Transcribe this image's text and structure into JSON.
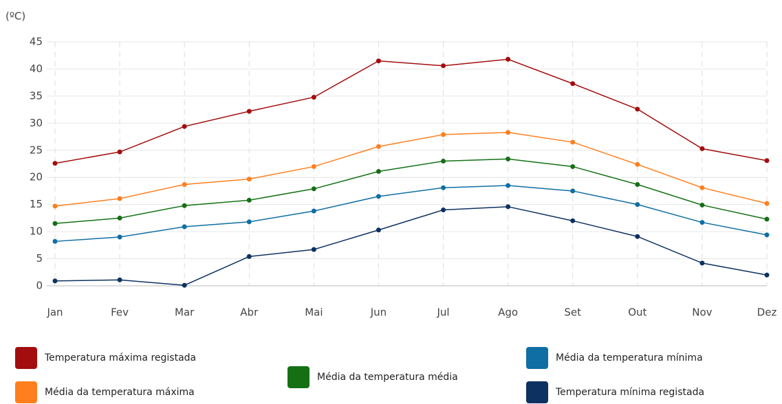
{
  "chart_data": {
    "type": "line",
    "y_label": "(ºC)",
    "categories": [
      "Jan",
      "Fev",
      "Mar",
      "Abr",
      "Mai",
      "Jun",
      "Jul",
      "Ago",
      "Set",
      "Out",
      "Nov",
      "Dez"
    ],
    "ylim": [
      0,
      45
    ],
    "yticks": [
      0,
      5,
      10,
      15,
      20,
      25,
      30,
      35,
      40,
      45
    ],
    "grid": true,
    "series": [
      {
        "name": "Temperatura máxima registada",
        "color": "#a30d0d",
        "values": [
          22.6,
          24.7,
          29.4,
          32.2,
          34.8,
          41.5,
          40.6,
          41.8,
          37.3,
          32.6,
          25.3,
          23.1
        ]
      },
      {
        "name": "Média da temperatura máxima",
        "color": "#ff7f1e",
        "values": [
          14.7,
          16.1,
          18.7,
          19.7,
          22.0,
          25.7,
          27.9,
          28.3,
          26.5,
          22.4,
          18.1,
          15.2
        ]
      },
      {
        "name": "Média da temperatura média",
        "color": "#157015",
        "values": [
          11.5,
          12.5,
          14.8,
          15.8,
          17.9,
          21.1,
          23.0,
          23.4,
          22.0,
          18.7,
          14.9,
          12.3
        ]
      },
      {
        "name": "Média da temperatura mínima",
        "color": "#0f6ea3",
        "values": [
          8.2,
          9.0,
          10.9,
          11.8,
          13.8,
          16.5,
          18.1,
          18.5,
          17.5,
          15.0,
          11.7,
          9.4
        ]
      },
      {
        "name": "Temperatura mínima registada",
        "color": "#0d3160",
        "values": [
          0.9,
          1.1,
          0.1,
          5.4,
          6.7,
          10.3,
          14.0,
          14.6,
          12.0,
          9.1,
          4.2,
          2.0
        ]
      }
    ]
  }
}
